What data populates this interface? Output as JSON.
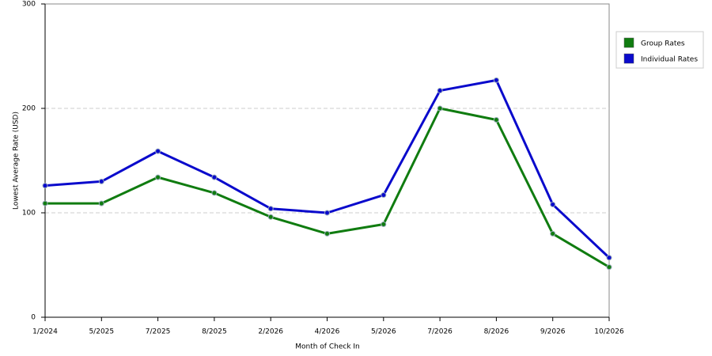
{
  "chart_data": {
    "type": "line",
    "x_label": "Month of Check In",
    "y_label": "Lowest Average Rate (USD)",
    "categories": [
      "1/2024",
      "5/2025",
      "7/2025",
      "8/2025",
      "2/2026",
      "4/2026",
      "5/2026",
      "7/2026",
      "8/2026",
      "9/2026",
      "10/2026"
    ],
    "series": [
      {
        "name": "Group Rates",
        "color": "#107c10",
        "values": [
          109,
          109,
          134,
          119,
          96,
          80,
          89,
          200,
          189,
          80,
          48
        ]
      },
      {
        "name": "Individual Rates",
        "color": "#0a0acc",
        "values": [
          126,
          130,
          159,
          134,
          104,
          100,
          117,
          217,
          227,
          108,
          57
        ]
      }
    ],
    "ylim": [
      0,
      300
    ],
    "yticks": [
      0,
      100,
      200,
      300
    ],
    "grid": true,
    "legend": "right"
  }
}
